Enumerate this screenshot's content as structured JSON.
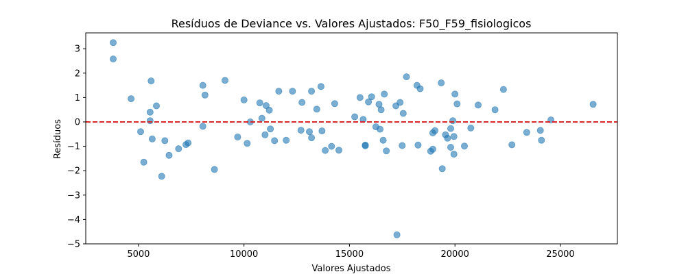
{
  "chart_data": {
    "type": "scatter",
    "title": "Resíduos de Deviance vs. Valores Ajustados: F50_F59_fisiologicos",
    "xlabel": "Valores Ajustados",
    "ylabel": "Resíduos",
    "xlim": [
      2500,
      27700
    ],
    "ylim": [
      -5,
      3.65
    ],
    "xticks": [
      5000,
      10000,
      15000,
      20000,
      25000
    ],
    "xtick_labels": [
      "5000",
      "10000",
      "15000",
      "20000",
      "25000"
    ],
    "yticks": [
      -5,
      -4,
      -3,
      -2,
      -1,
      0,
      1,
      2,
      3
    ],
    "ytick_labels": [
      "−5",
      "−4",
      "−3",
      "−2",
      "−1",
      "0",
      "1",
      "2",
      "3"
    ],
    "grid": false,
    "point_color": "#1f77b4",
    "reference_line": {
      "y": 0,
      "color": "#d62728",
      "style": "dashed"
    },
    "series": [
      {
        "points": [
          [
            3800,
            3.25
          ],
          [
            3800,
            2.58
          ],
          [
            4650,
            0.95
          ],
          [
            5100,
            -0.4
          ],
          [
            5250,
            -1.65
          ],
          [
            5550,
            0.4
          ],
          [
            5600,
            1.68
          ],
          [
            5550,
            0.05
          ],
          [
            5650,
            -0.7
          ],
          [
            5850,
            0.66
          ],
          [
            6100,
            -2.23
          ],
          [
            6250,
            -0.77
          ],
          [
            6450,
            -1.37
          ],
          [
            6900,
            -1.1
          ],
          [
            7250,
            -0.93
          ],
          [
            7350,
            -0.86
          ],
          [
            8050,
            1.5
          ],
          [
            8150,
            1.1
          ],
          [
            8050,
            -0.18
          ],
          [
            8600,
            -1.95
          ],
          [
            9100,
            1.7
          ],
          [
            9700,
            -0.62
          ],
          [
            10000,
            0.9
          ],
          [
            10150,
            -0.88
          ],
          [
            10300,
            0.0
          ],
          [
            10750,
            0.78
          ],
          [
            10850,
            0.15
          ],
          [
            11000,
            -0.53
          ],
          [
            11050,
            0.67
          ],
          [
            11200,
            0.48
          ],
          [
            11250,
            -0.29
          ],
          [
            11450,
            -0.77
          ],
          [
            11650,
            1.26
          ],
          [
            12000,
            -0.75
          ],
          [
            12300,
            1.26
          ],
          [
            12750,
            0.8
          ],
          [
            12700,
            -0.34
          ],
          [
            13100,
            -0.4
          ],
          [
            13200,
            1.26
          ],
          [
            13200,
            -0.65
          ],
          [
            13450,
            0.52
          ],
          [
            13650,
            1.45
          ],
          [
            13700,
            -0.37
          ],
          [
            13850,
            -1.17
          ],
          [
            14150,
            -1.0
          ],
          [
            14300,
            0.75
          ],
          [
            14500,
            -1.16
          ],
          [
            15250,
            0.21
          ],
          [
            15500,
            1.0
          ],
          [
            15650,
            0.1
          ],
          [
            15750,
            -0.95
          ],
          [
            15750,
            -0.98
          ],
          [
            15900,
            0.82
          ],
          [
            16050,
            1.03
          ],
          [
            16250,
            -0.2
          ],
          [
            16400,
            0.72
          ],
          [
            16450,
            -0.3
          ],
          [
            16500,
            0.5
          ],
          [
            16600,
            -0.75
          ],
          [
            16650,
            1.14
          ],
          [
            16750,
            -1.19
          ],
          [
            17200,
            0.66
          ],
          [
            17250,
            -4.63
          ],
          [
            17400,
            0.8
          ],
          [
            17500,
            -0.97
          ],
          [
            17550,
            0.35
          ],
          [
            17700,
            1.85
          ],
          [
            18200,
            1.5
          ],
          [
            18250,
            -0.95
          ],
          [
            18350,
            1.36
          ],
          [
            18850,
            -1.2
          ],
          [
            18950,
            -1.12
          ],
          [
            18950,
            -0.45
          ],
          [
            19050,
            -0.36
          ],
          [
            19350,
            1.6
          ],
          [
            19400,
            -1.92
          ],
          [
            19550,
            -0.53
          ],
          [
            19650,
            -0.67
          ],
          [
            19800,
            -0.27
          ],
          [
            19800,
            -1.04
          ],
          [
            19900,
            0.05
          ],
          [
            19950,
            -0.6
          ],
          [
            19950,
            -1.32
          ],
          [
            20000,
            1.14
          ],
          [
            20100,
            0.74
          ],
          [
            20450,
            -0.99
          ],
          [
            20750,
            -0.25
          ],
          [
            21100,
            0.69
          ],
          [
            21900,
            0.5
          ],
          [
            22300,
            1.33
          ],
          [
            22700,
            -0.94
          ],
          [
            23400,
            -0.43
          ],
          [
            24050,
            -0.35
          ],
          [
            24100,
            -0.75
          ],
          [
            24550,
            0.08
          ],
          [
            26550,
            0.72
          ]
        ]
      }
    ]
  }
}
